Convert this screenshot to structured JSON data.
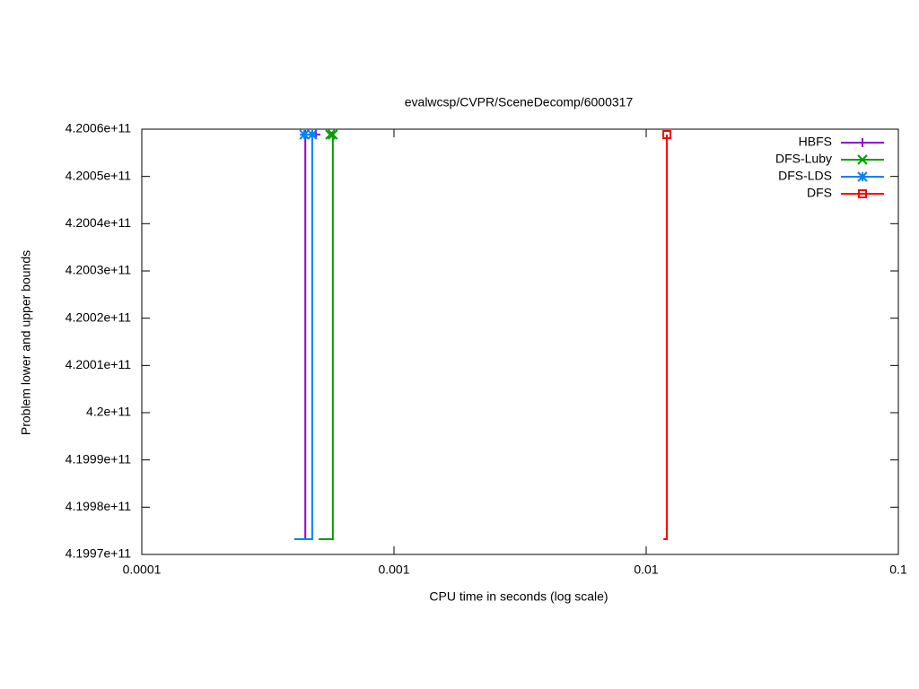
{
  "chart_data": {
    "type": "line",
    "title": "evalwcsp/CVPR/SceneDecomp/6000317",
    "xlabel": "CPU time in seconds (log scale)",
    "ylabel": "Problem lower and upper bounds",
    "xscale": "log",
    "xlim": [
      0.0001,
      0.1
    ],
    "xticks": [
      0.0001,
      0.001,
      0.01,
      0.1
    ],
    "ylim": [
      419970000000,
      420060000000
    ],
    "yticks": [
      {
        "value": 419970000000,
        "label": "4.1997e+11"
      },
      {
        "value": 419980000000,
        "label": "4.1998e+11"
      },
      {
        "value": 419990000000,
        "label": "4.1999e+11"
      },
      {
        "value": 420000000000,
        "label": "4.2e+11"
      },
      {
        "value": 420010000000,
        "label": "4.2001e+11"
      },
      {
        "value": 420020000000,
        "label": "4.2002e+11"
      },
      {
        "value": 420030000000,
        "label": "4.2003e+11"
      },
      {
        "value": 420040000000,
        "label": "4.2004e+11"
      },
      {
        "value": 420050000000,
        "label": "4.2005e+11"
      },
      {
        "value": 420060000000,
        "label": "4.2006e+11"
      }
    ],
    "grid": false,
    "legend": "top-right",
    "series": [
      {
        "name": "HBFS",
        "color": "#9400d3",
        "marker": "plus",
        "x": [
          0.000403,
          0.000445,
          0.000445,
          0.00049
        ],
        "y": [
          419973230000,
          419973230000,
          420058860000,
          420058860000
        ]
      },
      {
        "name": "DFS-Luby",
        "color": "#009e00",
        "marker": "cross",
        "x": [
          0.000503,
          0.000572,
          0.000572,
          0.000559
        ],
        "y": [
          419973230000,
          419973230000,
          420058860000,
          420058860000
        ]
      },
      {
        "name": "DFS-LDS",
        "color": "#0080ff",
        "marker": "star",
        "x": [
          0.000405,
          0.000474,
          0.000474,
          0.000441
        ],
        "y": [
          419973230000,
          419973230000,
          420058860000,
          420058860000
        ]
      },
      {
        "name": "DFS",
        "color": "#ff0000",
        "marker": "square",
        "x": [
          0.0117,
          0.01208,
          0.01208
        ],
        "y": [
          419973230000,
          419973230000,
          420058860000
        ]
      }
    ]
  }
}
